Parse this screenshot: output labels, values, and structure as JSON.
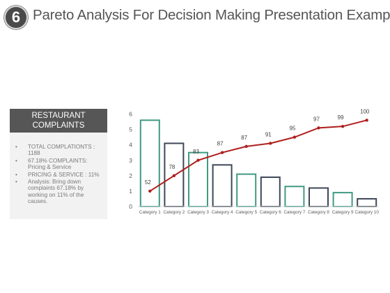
{
  "slide": {
    "number": "6",
    "title": "Pareto Analysis For Decision Making Presentation Examples"
  },
  "panel": {
    "heading_line1": "RESTAURANT",
    "heading_line2": "COMPLAINTS",
    "bullets": [
      "TOTAL COMPLATIONTS : 1188",
      "67.18% COMPLAINTS: Pricing & Service",
      "PRICING & SERVICE : 11%",
      "Analysis: Bring down complaints 67.18% by working on 11% of the causes."
    ]
  },
  "colors": {
    "green": "#3f9a82",
    "navy": "#3e4657",
    "line": "#b01e1e",
    "header": "#565656",
    "panel_bg": "#f2f2f2"
  },
  "chart_data": {
    "type": "bar",
    "categories": [
      "Category 1",
      "Category 2",
      "Category 3",
      "Category 4",
      "Category 5",
      "Category 6",
      "Category 7",
      "Category 8",
      "Category 9",
      "Category 10"
    ],
    "series": [
      {
        "values": [
          5.6,
          4.1,
          3.5,
          2.7,
          2.1,
          1.9,
          1.3,
          1.2,
          0.9,
          0.5
        ],
        "bar_colors": [
          "green",
          "navy",
          "green",
          "navy",
          "green",
          "navy",
          "green",
          "navy",
          "green",
          "navy"
        ]
      },
      {
        "type": "line",
        "values": [
          1.0,
          2.0,
          3.0,
          3.5,
          3.9,
          4.1,
          4.5,
          5.1,
          5.2,
          5.6
        ],
        "labels": [
          "52",
          "78",
          "83",
          "87",
          "87",
          "91",
          "95",
          "97",
          "99",
          "100"
        ]
      }
    ],
    "yticks": [
      "0",
      "1",
      "2",
      "3",
      "4",
      "5",
      "6"
    ],
    "ylim": [
      0,
      6
    ],
    "grid": false,
    "legend": "none"
  }
}
